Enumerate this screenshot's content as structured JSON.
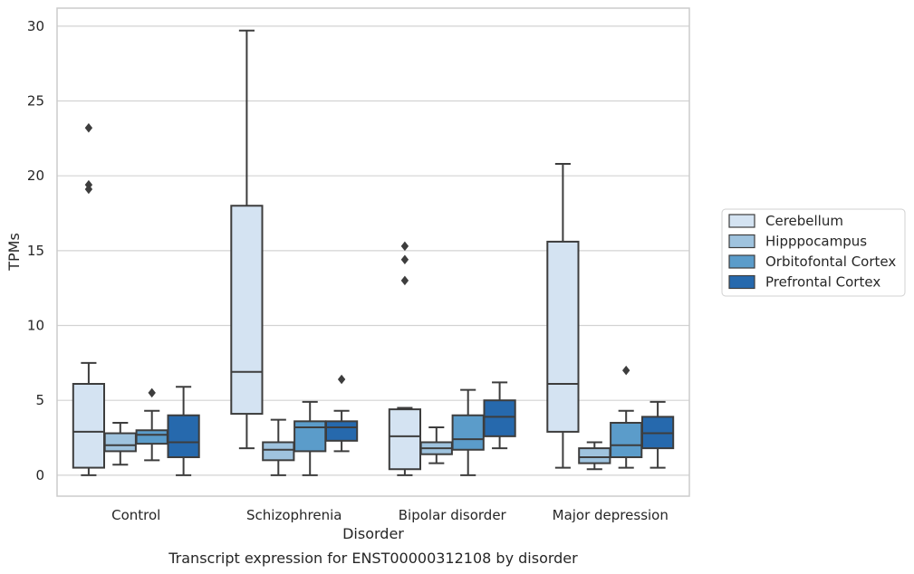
{
  "chart_data": {
    "type": "box",
    "title": "",
    "caption": "Transcript expression for ENST00000312108 by disorder",
    "xlabel": "Disorder",
    "ylabel": "TPMs",
    "ylim": [
      -1.4,
      31.2
    ],
    "yticks": [
      0,
      5,
      10,
      15,
      20,
      25,
      30
    ],
    "grid": "horizontal",
    "legend_position": "right",
    "categories": [
      "Control",
      "Schizophrenia",
      "Bipolar disorder",
      "Major depression"
    ],
    "series": [
      {
        "name": "Cerebellum",
        "color": "#d4e3f2",
        "boxes": [
          {
            "whislo": 0.0,
            "q1": 0.5,
            "med": 2.9,
            "q3": 6.1,
            "whishi": 7.5,
            "fliers": [
              23.2,
              19.4,
              19.1
            ]
          },
          {
            "whislo": 1.8,
            "q1": 4.1,
            "med": 6.9,
            "q3": 18.0,
            "whishi": 29.7,
            "fliers": []
          },
          {
            "whislo": 0.0,
            "q1": 0.4,
            "med": 2.6,
            "q3": 4.4,
            "whishi": 4.5,
            "fliers": [
              15.3,
              14.4,
              13.0
            ]
          },
          {
            "whislo": 0.5,
            "q1": 2.9,
            "med": 6.1,
            "q3": 15.6,
            "whishi": 20.8,
            "fliers": []
          }
        ]
      },
      {
        "name": "Hipppocampus",
        "color": "#9fc3de",
        "boxes": [
          {
            "whislo": 0.7,
            "q1": 1.6,
            "med": 2.0,
            "q3": 2.8,
            "whishi": 3.5,
            "fliers": []
          },
          {
            "whislo": 0.0,
            "q1": 1.0,
            "med": 1.7,
            "q3": 2.2,
            "whishi": 3.7,
            "fliers": []
          },
          {
            "whislo": 0.8,
            "q1": 1.4,
            "med": 1.8,
            "q3": 2.2,
            "whishi": 3.2,
            "fliers": []
          },
          {
            "whislo": 0.4,
            "q1": 0.8,
            "med": 1.2,
            "q3": 1.8,
            "whishi": 2.2,
            "fliers": []
          }
        ]
      },
      {
        "name": "Orbitofontal Cortex",
        "color": "#5b9cca",
        "boxes": [
          {
            "whislo": 1.0,
            "q1": 2.1,
            "med": 2.7,
            "q3": 3.0,
            "whishi": 4.3,
            "fliers": [
              5.5
            ]
          },
          {
            "whislo": 0.0,
            "q1": 1.6,
            "med": 3.2,
            "q3": 3.6,
            "whishi": 4.9,
            "fliers": []
          },
          {
            "whislo": 0.0,
            "q1": 1.7,
            "med": 2.4,
            "q3": 4.0,
            "whishi": 5.7,
            "fliers": []
          },
          {
            "whislo": 0.5,
            "q1": 1.2,
            "med": 2.0,
            "q3": 3.5,
            "whishi": 4.3,
            "fliers": [
              7.0
            ]
          }
        ]
      },
      {
        "name": "Prefrontal Cortex",
        "color": "#2669ad",
        "boxes": [
          {
            "whislo": 0.0,
            "q1": 1.2,
            "med": 2.2,
            "q3": 4.0,
            "whishi": 5.9,
            "fliers": []
          },
          {
            "whislo": 1.6,
            "q1": 2.3,
            "med": 3.2,
            "q3": 3.6,
            "whishi": 4.3,
            "fliers": [
              6.4
            ]
          },
          {
            "whislo": 1.8,
            "q1": 2.6,
            "med": 3.9,
            "q3": 5.0,
            "whishi": 6.2,
            "fliers": []
          },
          {
            "whislo": 0.5,
            "q1": 1.8,
            "med": 2.8,
            "q3": 3.9,
            "whishi": 4.9,
            "fliers": []
          }
        ]
      }
    ]
  }
}
